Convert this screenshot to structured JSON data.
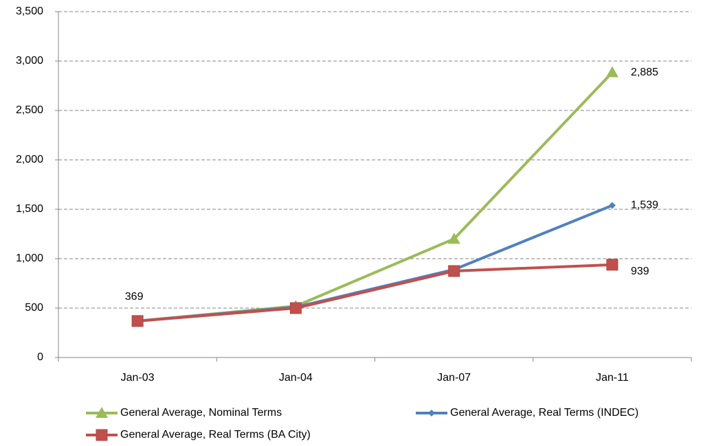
{
  "chart_data": {
    "type": "line",
    "categories": [
      "Jan-03",
      "Jan-04",
      "Jan-07",
      "Jan-11"
    ],
    "series": [
      {
        "name": "General Average, Nominal Terms",
        "color": "#9bbb59",
        "marker": "triangle",
        "values": [
          369,
          520,
          1200,
          2885
        ],
        "value_labels": [
          null,
          null,
          null,
          "2,885"
        ]
      },
      {
        "name": "General Average, Real Terms (INDEC)",
        "color": "#4f81bd",
        "marker": "diamond",
        "values": [
          369,
          510,
          890,
          1539
        ],
        "value_labels": [
          null,
          null,
          null,
          "1,539"
        ]
      },
      {
        "name": "General Average, Real Terms (BA City)",
        "color": "#c0504d",
        "marker": "square",
        "values": [
          369,
          500,
          875,
          939
        ],
        "value_labels": [
          "369",
          null,
          null,
          "939"
        ]
      }
    ],
    "ylim": [
      0,
      3500
    ],
    "yticks": [
      0,
      500,
      {
        "value": 1000,
        "label": "1,000"
      },
      {
        "value": 1500,
        "label": "1,500"
      },
      {
        "value": 2000,
        "label": "2,000"
      },
      {
        "value": 2500,
        "label": "2,500"
      },
      {
        "value": 3000,
        "label": "3,000"
      },
      {
        "value": 3500,
        "label": "3,500"
      }
    ],
    "grid": true,
    "legend": "bottom"
  }
}
